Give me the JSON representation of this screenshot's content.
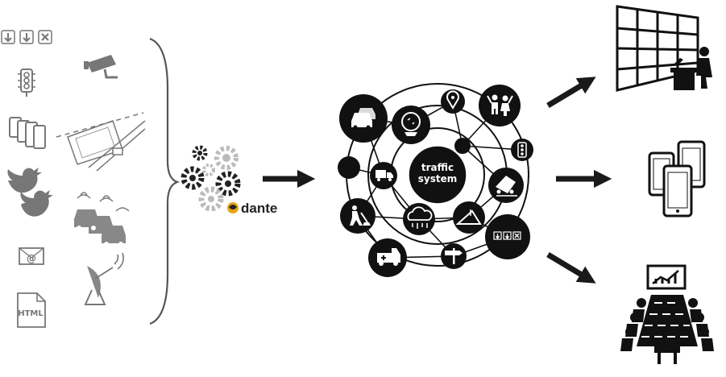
{
  "diagram": {
    "brand_name": "dante",
    "hub_line1": "traffic",
    "hub_line2": "system",
    "html_label": "HTML",
    "email_label": "@",
    "icons": {
      "sources": [
        "road-sign-arrows-icon",
        "cctv-camera-icon",
        "traffic-light-icon",
        "smartphones-icon",
        "road-map-icon",
        "twitter-bird-icon",
        "traffic-jam-cars-icon",
        "email-icon",
        "satellite-dish-icon",
        "html-file-icon"
      ],
      "hub_nodes": [
        "cars-icon",
        "crystal-ball-icon",
        "map-pin-icon",
        "people-icon",
        "traffic-light-icon",
        "truck-icon",
        "accident-icon",
        "roadwork-icon",
        "weather-icon",
        "hill-icon",
        "road-sign-arrows-icon",
        "ambulance-icon",
        "direction-sign-icon"
      ],
      "outputs": [
        "video-wall-operator-icon",
        "smartphones-icon",
        "meeting-presentation-icon"
      ]
    }
  }
}
